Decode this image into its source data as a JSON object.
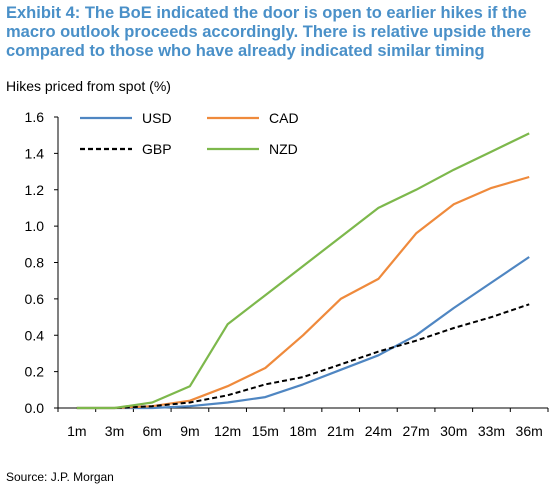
{
  "title": "Exhibit 4: The BoE indicated the door is open to earlier hikes if the macro outlook proceeds accordingly. There is relative upside there compared to those who have already indicated similar timing",
  "source": "Source: J.P. Morgan",
  "chart_data": {
    "type": "line",
    "ylabel": "Hikes priced from spot (%)",
    "xlabel": "",
    "categories": [
      "1m",
      "3m",
      "6m",
      "9m",
      "12m",
      "15m",
      "18m",
      "21m",
      "24m",
      "27m",
      "30m",
      "33m",
      "36m"
    ],
    "ylim": [
      0,
      1.6
    ],
    "yticks": [
      "0.0",
      "0.2",
      "0.4",
      "0.6",
      "0.8",
      "1.0",
      "1.2",
      "1.4",
      "1.6"
    ],
    "grid": false,
    "legend_position": "top-left",
    "series": [
      {
        "name": "USD",
        "color": "#4f86c2",
        "dash": false,
        "values": [
          0.0,
          0.0,
          0.0,
          0.01,
          0.03,
          0.06,
          0.13,
          0.21,
          0.29,
          0.4,
          0.55,
          0.69,
          0.83
        ]
      },
      {
        "name": "CAD",
        "color": "#ef8a3c",
        "dash": false,
        "values": [
          0.0,
          0.0,
          0.01,
          0.04,
          0.12,
          0.22,
          0.4,
          0.6,
          0.71,
          0.96,
          1.12,
          1.21,
          1.27
        ]
      },
      {
        "name": "GBP",
        "color": "#000000",
        "dash": true,
        "values": [
          0.0,
          0.0,
          0.01,
          0.03,
          0.07,
          0.13,
          0.17,
          0.24,
          0.31,
          0.37,
          0.44,
          0.5,
          0.57
        ]
      },
      {
        "name": "NZD",
        "color": "#7db84c",
        "dash": false,
        "values": [
          0.0,
          0.0,
          0.03,
          0.12,
          0.46,
          0.62,
          0.78,
          0.94,
          1.1,
          1.2,
          1.31,
          1.41,
          1.51
        ]
      }
    ]
  }
}
